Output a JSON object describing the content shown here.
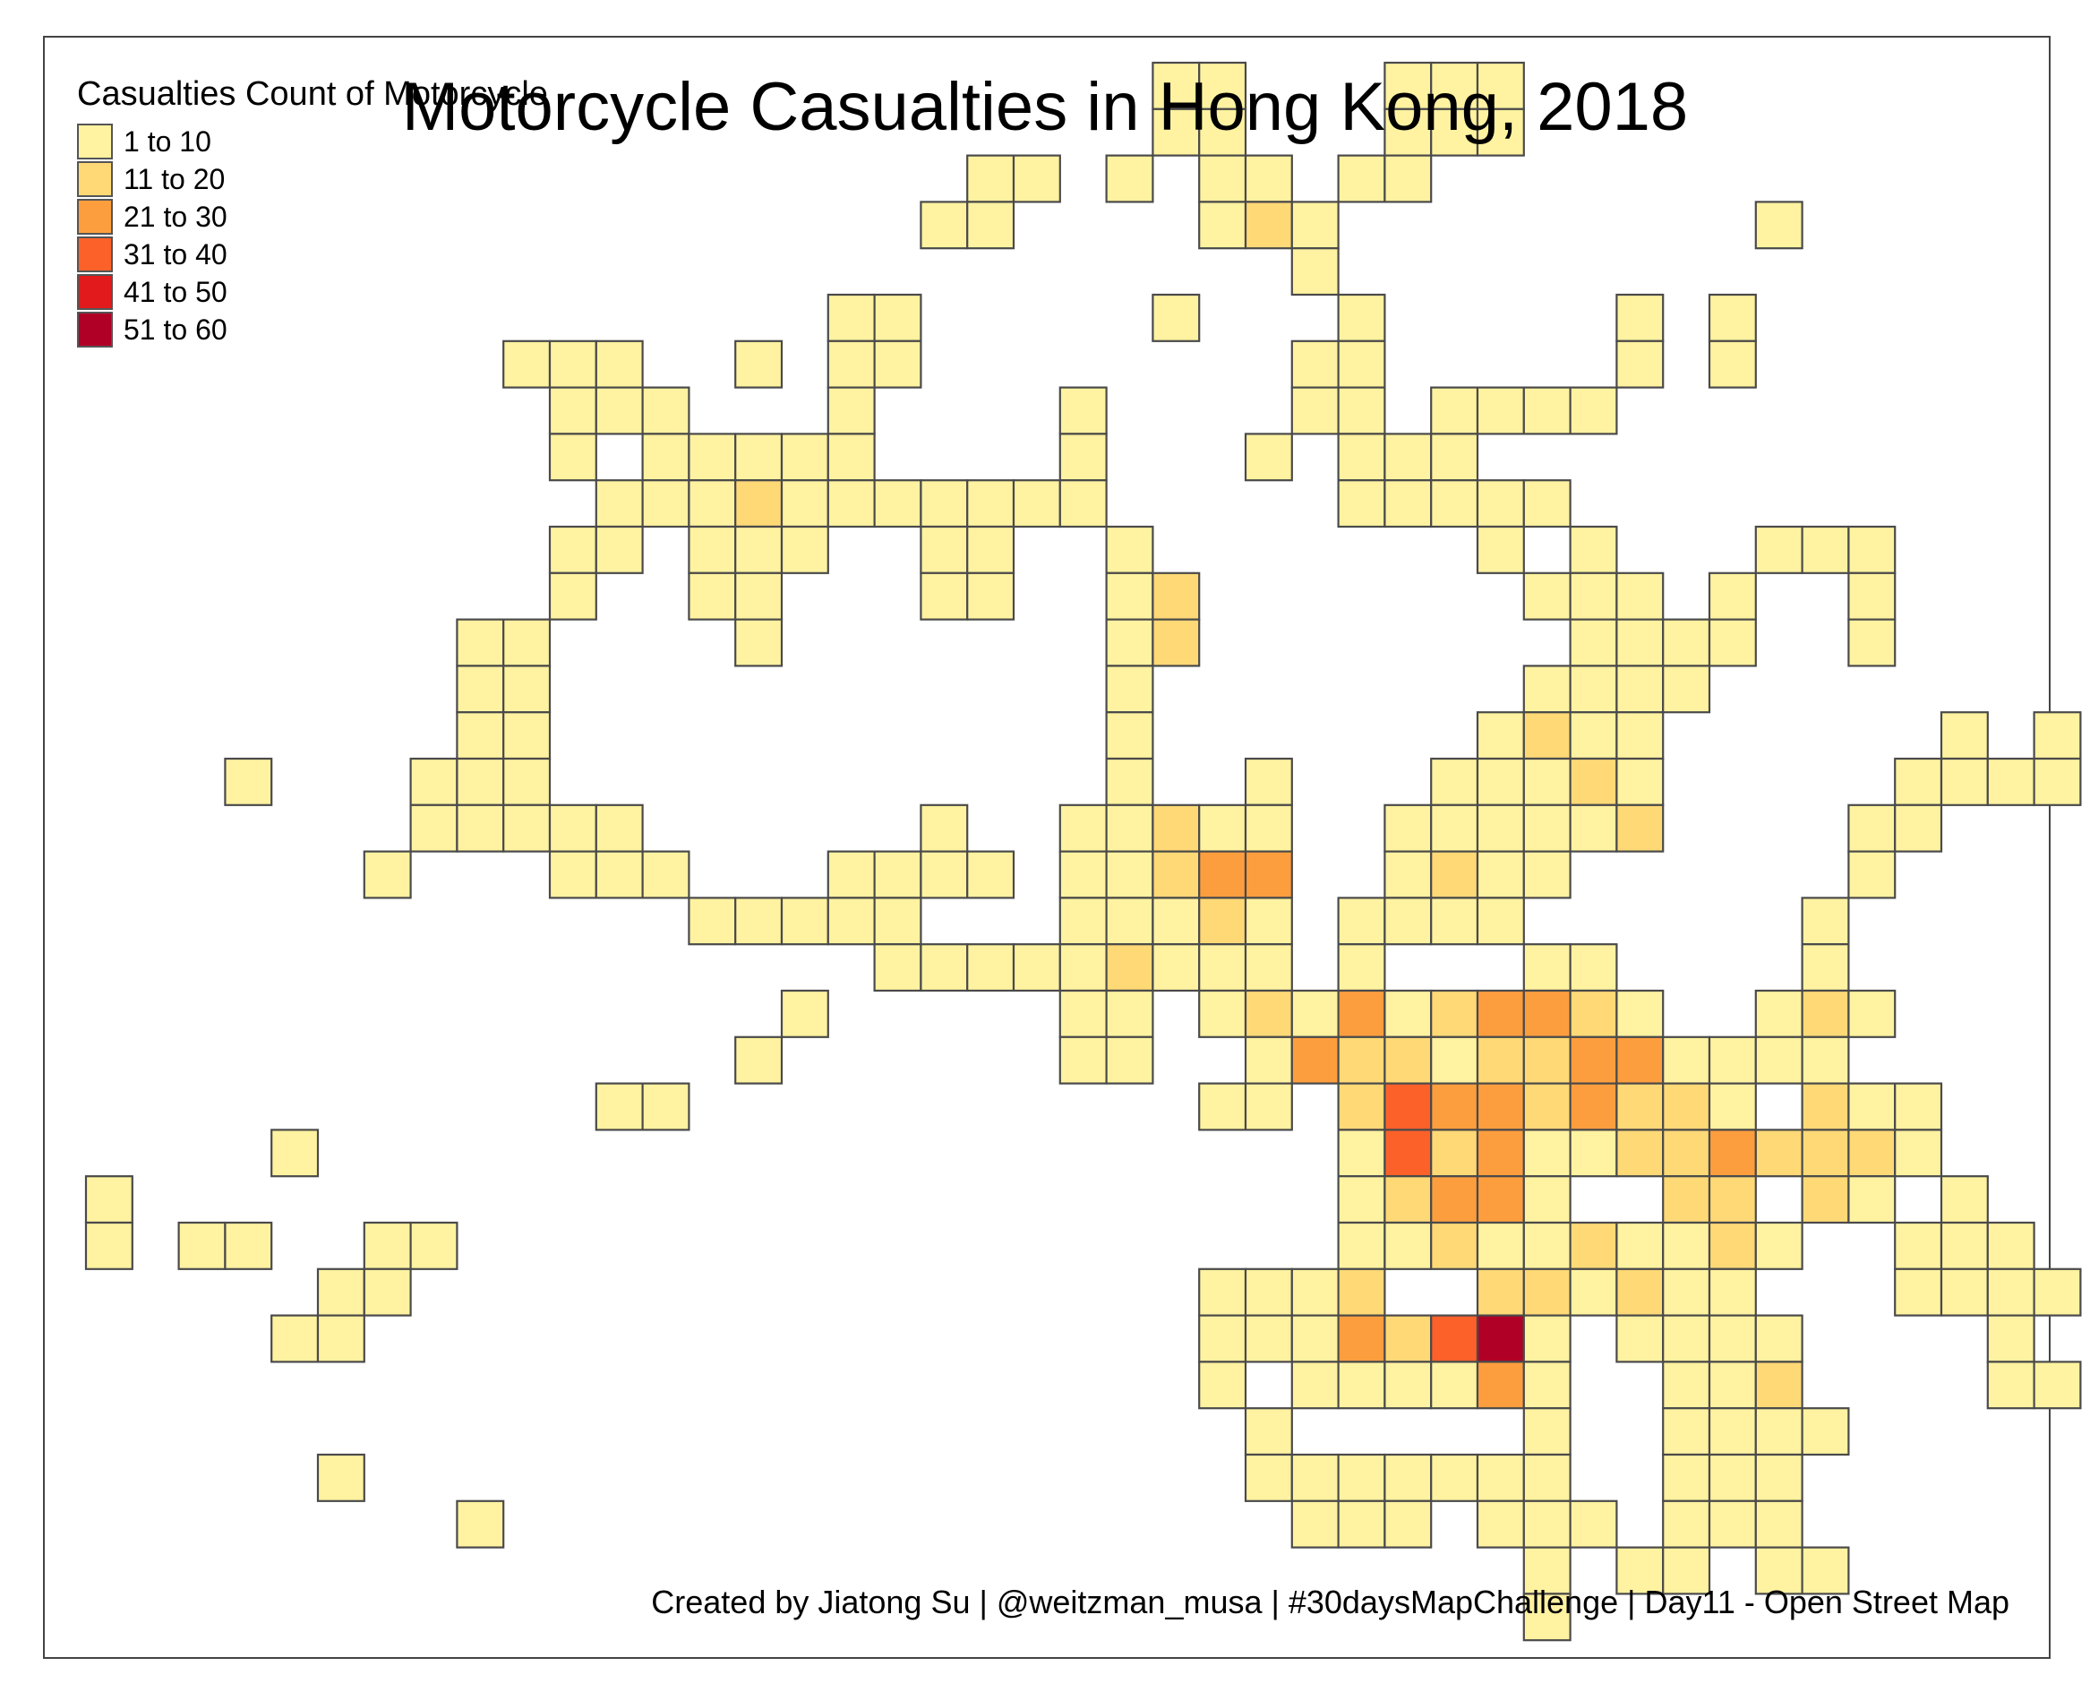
{
  "title": "Motorcycle Casualties in Hong Kong, 2018",
  "caption": "Created by Jiatong Su | @weitzman_musa | #30daysMapChallenge | Day11 - Open Street Map",
  "legend": {
    "title": "Casualties Count of Motorcycle",
    "items": [
      {
        "label": "1 to 10",
        "color": "#fff2a0"
      },
      {
        "label": "11 to 20",
        "color": "#fed976"
      },
      {
        "label": "21 to 30",
        "color": "#fd9e3e"
      },
      {
        "label": "31 to 40",
        "color": "#fc6129"
      },
      {
        "label": "41 to 50",
        "color": "#e31a1c"
      },
      {
        "label": "51 to 60",
        "color": "#b10026"
      }
    ]
  },
  "grid_cells": [
    "23,0,0",
    "24,0,0",
    "28,0,0",
    "29,0,0",
    "30,0,0",
    "23,1,0",
    "24,1,0",
    "28,1,0",
    "29,1,0",
    "30,1,0",
    "19,2,0",
    "20,2,0",
    "22,2,0",
    "24,2,0",
    "25,2,0",
    "27,2,0",
    "28,2,0",
    "18,3,0",
    "19,3,0",
    "24,3,0",
    "25,3,1",
    "26,3,0",
    "36,3,0",
    "26,4,0",
    "16,5,0",
    "17,5,0",
    "23,5,0",
    "27,5,0",
    "33,5,0",
    "35,5,0",
    "9,6,0",
    "10,6,0",
    "11,6,0",
    "14,6,0",
    "16,6,0",
    "17,6,0",
    "26,6,0",
    "27,6,0",
    "33,6,0",
    "35,6,0",
    "10,7,0",
    "11,7,0",
    "12,7,0",
    "16,7,0",
    "21,7,0",
    "26,7,0",
    "27,7,0",
    "29,7,0",
    "30,7,0",
    "31,7,0",
    "32,7,0",
    "10,8,0",
    "12,8,0",
    "13,8,0",
    "14,8,0",
    "15,8,0",
    "16,8,0",
    "21,8,0",
    "25,8,0",
    "27,8,0",
    "28,8,0",
    "29,8,0",
    "11,9,0",
    "12,9,0",
    "13,9,0",
    "14,9,1",
    "15,9,0",
    "16,9,0",
    "17,9,0",
    "18,9,0",
    "19,9,0",
    "20,9,0",
    "21,9,0",
    "27,9,0",
    "28,9,0",
    "29,9,0",
    "30,9,0",
    "31,9,0",
    "10,10,0",
    "11,10,0",
    "13,10,0",
    "14,10,0",
    "15,10,0",
    "18,10,0",
    "19,10,0",
    "22,10,0",
    "30,10,0",
    "32,10,0",
    "36,10,0",
    "37,10,0",
    "38,10,0",
    "10,11,0",
    "13,11,0",
    "14,11,0",
    "18,11,0",
    "19,11,0",
    "22,11,0",
    "23,11,1",
    "31,11,0",
    "32,11,0",
    "33,11,0",
    "35,11,0",
    "38,11,0",
    "8,12,0",
    "9,12,0",
    "14,12,0",
    "22,12,0",
    "23,12,1",
    "32,12,0",
    "33,12,0",
    "34,12,0",
    "35,12,0",
    "38,12,0",
    "8,13,0",
    "9,13,0",
    "22,13,0",
    "31,13,0",
    "32,13,0",
    "33,13,0",
    "34,13,0",
    "8,14,0",
    "9,14,0",
    "22,14,0",
    "30,14,0",
    "31,14,1",
    "32,14,0",
    "33,14,0",
    "40,14,0",
    "42,14,0",
    "3,15,0",
    "7,15,0",
    "8,15,0",
    "9,15,0",
    "22,15,0",
    "25,15,0",
    "29,15,0",
    "30,15,0",
    "31,15,0",
    "32,15,1",
    "33,15,0",
    "39,15,0",
    "40,15,0",
    "41,15,0",
    "42,15,0",
    "7,16,0",
    "8,16,0",
    "9,16,0",
    "10,16,0",
    "11,16,0",
    "18,16,0",
    "21,16,0",
    "22,16,0",
    "23,16,1",
    "24,16,0",
    "25,16,0",
    "28,16,0",
    "29,16,0",
    "30,16,0",
    "31,16,0",
    "32,16,0",
    "33,16,1",
    "38,16,0",
    "39,16,0",
    "6,17,0",
    "10,17,0",
    "11,17,0",
    "12,17,0",
    "16,17,0",
    "17,17,0",
    "18,17,0",
    "19,17,0",
    "21,17,0",
    "22,17,0",
    "23,17,1",
    "24,17,2",
    "25,17,2",
    "28,17,0",
    "29,17,1",
    "30,17,0",
    "31,17,0",
    "38,17,0",
    "13,18,0",
    "14,18,0",
    "15,18,0",
    "16,18,0",
    "17,18,0",
    "21,18,0",
    "22,18,0",
    "23,18,0",
    "24,18,1",
    "25,18,0",
    "27,18,0",
    "28,18,0",
    "29,18,0",
    "30,18,0",
    "37,18,0",
    "17,19,0",
    "18,19,0",
    "19,19,0",
    "20,19,0",
    "21,19,0",
    "22,19,1",
    "23,19,0",
    "24,19,0",
    "25,19,0",
    "27,19,0",
    "31,19,0",
    "32,19,0",
    "37,19,0",
    "15,20,0",
    "21,20,0",
    "22,20,0",
    "24,20,0",
    "25,20,1",
    "26,20,0",
    "27,20,2",
    "28,20,0",
    "29,20,1",
    "30,20,2",
    "31,20,2",
    "32,20,1",
    "33,20,0",
    "36,20,0",
    "37,20,1",
    "38,20,0",
    "14,21,0",
    "21,21,0",
    "22,21,0",
    "25,21,0",
    "26,21,2",
    "27,21,1",
    "28,21,1",
    "29,21,0",
    "30,21,1",
    "31,21,1",
    "32,21,2",
    "33,21,2",
    "34,21,0",
    "35,21,0",
    "36,21,0",
    "37,21,0",
    "11,22,0",
    "12,22,0",
    "24,22,0",
    "25,22,0",
    "27,22,1",
    "28,22,3",
    "29,22,2",
    "30,22,2",
    "31,22,1",
    "32,22,2",
    "33,22,1",
    "34,22,1",
    "35,22,0",
    "37,22,1",
    "38,22,0",
    "39,22,0",
    "4,23,0",
    "27,23,0",
    "28,23,3",
    "29,23,1",
    "30,23,2",
    "31,23,0",
    "32,23,0",
    "33,23,1",
    "34,23,1",
    "35,23,2",
    "36,23,1",
    "37,23,1",
    "38,23,1",
    "39,23,0",
    "0,24,0",
    "27,24,0",
    "28,24,1",
    "29,24,2",
    "30,24,2",
    "31,24,0",
    "34,24,1",
    "35,24,1",
    "37,24,1",
    "38,24,0",
    "40,24,0",
    "0,25,0",
    "2,25,0",
    "3,25,0",
    "6,25,0",
    "7,25,0",
    "27,25,0",
    "28,25,0",
    "29,25,1",
    "30,25,0",
    "31,25,0",
    "32,25,1",
    "33,25,0",
    "34,25,0",
    "35,25,1",
    "36,25,0",
    "39,25,0",
    "40,25,0",
    "41,25,0",
    "5,26,0",
    "6,26,0",
    "24,26,0",
    "25,26,0",
    "26,26,0",
    "27,26,1",
    "30,26,1",
    "31,26,1",
    "32,26,0",
    "33,26,1",
    "34,26,0",
    "35,26,0",
    "39,26,0",
    "40,26,0",
    "41,26,0",
    "42,26,0",
    "4,27,0",
    "5,27,0",
    "24,27,0",
    "25,27,0",
    "26,27,0",
    "27,27,2",
    "28,27,1",
    "29,27,3",
    "30,27,5",
    "31,27,0",
    "33,27,0",
    "34,27,0",
    "35,27,0",
    "36,27,0",
    "41,27,0",
    "24,28,0",
    "26,28,0",
    "27,28,0",
    "28,28,0",
    "29,28,0",
    "30,28,2",
    "31,28,0",
    "34,28,0",
    "35,28,0",
    "36,28,1",
    "41,28,0",
    "42,28,0",
    "25,29,0",
    "31,29,0",
    "34,29,0",
    "35,29,0",
    "36,29,0",
    "37,29,0",
    "5,30,0",
    "25,30,0",
    "26,30,0",
    "27,30,0",
    "28,30,0",
    "29,30,0",
    "30,30,0",
    "31,30,0",
    "34,30,0",
    "35,30,0",
    "36,30,0",
    "8,31,0",
    "26,31,0",
    "27,31,0",
    "28,31,0",
    "30,31,0",
    "31,31,0",
    "32,31,0",
    "34,31,0",
    "35,31,0",
    "36,31,0",
    "31,32,0",
    "33,32,0",
    "34,32,0",
    "36,32,0",
    "37,32,0",
    "31,33,0"
  ]
}
